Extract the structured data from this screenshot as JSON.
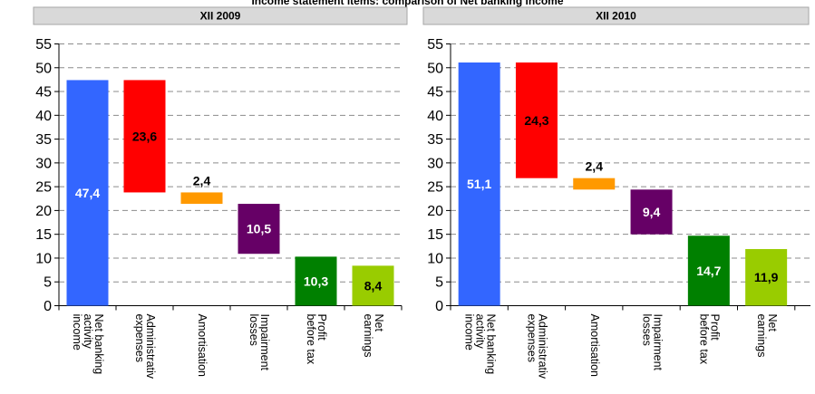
{
  "page_title": "Income statement items: comparison of Net banking income",
  "colors": {
    "header_fill": "#d9d9d9",
    "header_stroke": "#a6a6a6",
    "income": "#3366ff",
    "expenses": "#ff0000",
    "amortisation": "#ff9900",
    "impairment": "#660066",
    "profit": "#008000",
    "net": "#99cc00"
  },
  "chart_data": [
    {
      "type": "bar",
      "subtype": "waterfall",
      "header": "XII 2009",
      "ylim": [
        0,
        55
      ],
      "yticks": [
        "0",
        "5",
        "10",
        "15",
        "20",
        "25",
        "30",
        "35",
        "40",
        "45",
        "50",
        "55"
      ],
      "grid": true,
      "categories": [
        [
          "Net banking",
          "activity",
          "income"
        ],
        [
          "Administrativ",
          "expenses"
        ],
        [
          "Amortisation"
        ],
        [
          "Impairment",
          "losses"
        ],
        [
          "Profit",
          "before tax"
        ],
        [
          "Net",
          "earnings"
        ]
      ],
      "bars": [
        {
          "bottom": 0,
          "top": 47.4,
          "label": "47,4",
          "color": "#3366ff",
          "label_color": "#ffffff",
          "label_pos": "inside"
        },
        {
          "bottom": 23.8,
          "top": 47.4,
          "label": "23,6",
          "color": "#ff0000",
          "label_color": "#000000",
          "label_pos": "inside"
        },
        {
          "bottom": 21.4,
          "top": 23.8,
          "label": "2,4",
          "color": "#ff9900",
          "label_color": "#000000",
          "label_pos": "above"
        },
        {
          "bottom": 10.9,
          "top": 21.4,
          "label": "10,5",
          "color": "#660066",
          "label_color": "#ffffff",
          "label_pos": "inside"
        },
        {
          "bottom": 0,
          "top": 10.3,
          "label": "10,3",
          "color": "#008000",
          "label_color": "#ffffff",
          "label_pos": "inside"
        },
        {
          "bottom": 0,
          "top": 8.4,
          "label": "8,4",
          "color": "#99cc00",
          "label_color": "#000000",
          "label_pos": "inside"
        }
      ]
    },
    {
      "type": "bar",
      "subtype": "waterfall",
      "header": "XII 2010",
      "ylim": [
        0,
        55
      ],
      "yticks": [
        "0",
        "5",
        "10",
        "15",
        "20",
        "25",
        "30",
        "35",
        "40",
        "45",
        "50",
        "55"
      ],
      "grid": true,
      "categories": [
        [
          "Net banking",
          "activity",
          "income"
        ],
        [
          "Administrativ",
          "expenses"
        ],
        [
          "Amortisation"
        ],
        [
          "Impairment",
          "losses"
        ],
        [
          "Profit",
          "before tax"
        ],
        [
          "Net",
          "earnings"
        ]
      ],
      "bars": [
        {
          "bottom": 0,
          "top": 51.1,
          "label": "51,1",
          "color": "#3366ff",
          "label_color": "#ffffff",
          "label_pos": "inside"
        },
        {
          "bottom": 26.8,
          "top": 51.1,
          "label": "24,3",
          "color": "#ff0000",
          "label_color": "#000000",
          "label_pos": "inside"
        },
        {
          "bottom": 24.4,
          "top": 26.8,
          "label": "2,4",
          "color": "#ff9900",
          "label_color": "#000000",
          "label_pos": "above"
        },
        {
          "bottom": 15.0,
          "top": 24.4,
          "label": "9,4",
          "color": "#660066",
          "label_color": "#ffffff",
          "label_pos": "inside"
        },
        {
          "bottom": 0,
          "top": 14.7,
          "label": "14,7",
          "color": "#008000",
          "label_color": "#ffffff",
          "label_pos": "inside"
        },
        {
          "bottom": 0,
          "top": 11.9,
          "label": "11,9",
          "color": "#99cc00",
          "label_color": "#000000",
          "label_pos": "inside"
        }
      ]
    }
  ]
}
